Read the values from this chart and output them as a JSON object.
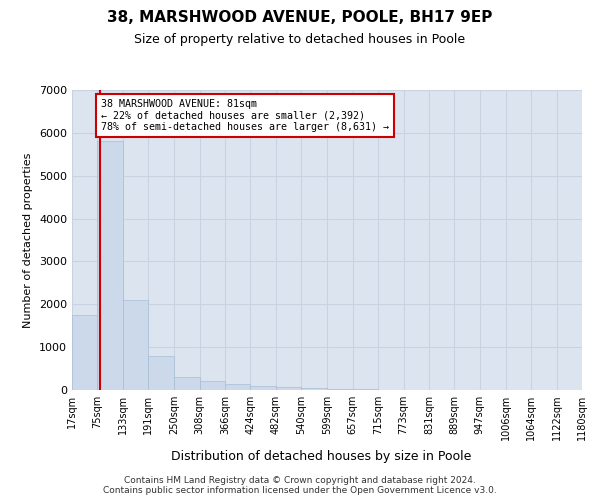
{
  "title": "38, MARSHWOOD AVENUE, POOLE, BH17 9EP",
  "subtitle": "Size of property relative to detached houses in Poole",
  "xlabel": "Distribution of detached houses by size in Poole",
  "ylabel": "Number of detached properties",
  "bar_color": "#ccd9ea",
  "bar_edge_color": "#a8bdd4",
  "grid_color": "#c8d2e0",
  "bg_color": "#dce4ef",
  "annotation_box_color": "#cc0000",
  "annotation_text": "38 MARSHWOOD AVENUE: 81sqm\n← 22% of detached houses are smaller (2,392)\n78% of semi-detached houses are larger (8,631) →",
  "vline_x": 81,
  "vline_color": "#cc0000",
  "bin_edges": [
    17,
    75,
    133,
    191,
    250,
    308,
    366,
    424,
    482,
    540,
    599,
    657,
    715,
    773,
    831,
    889,
    947,
    1006,
    1064,
    1122,
    1180
  ],
  "bar_heights": [
    1750,
    5800,
    2100,
    800,
    300,
    200,
    130,
    100,
    70,
    50,
    30,
    15,
    8,
    4,
    2,
    1,
    1,
    0,
    0,
    0
  ],
  "ylim": [
    0,
    7000
  ],
  "yticks": [
    0,
    1000,
    2000,
    3000,
    4000,
    5000,
    6000,
    7000
  ],
  "footer_line1": "Contains HM Land Registry data © Crown copyright and database right 2024.",
  "footer_line2": "Contains public sector information licensed under the Open Government Licence v3.0."
}
